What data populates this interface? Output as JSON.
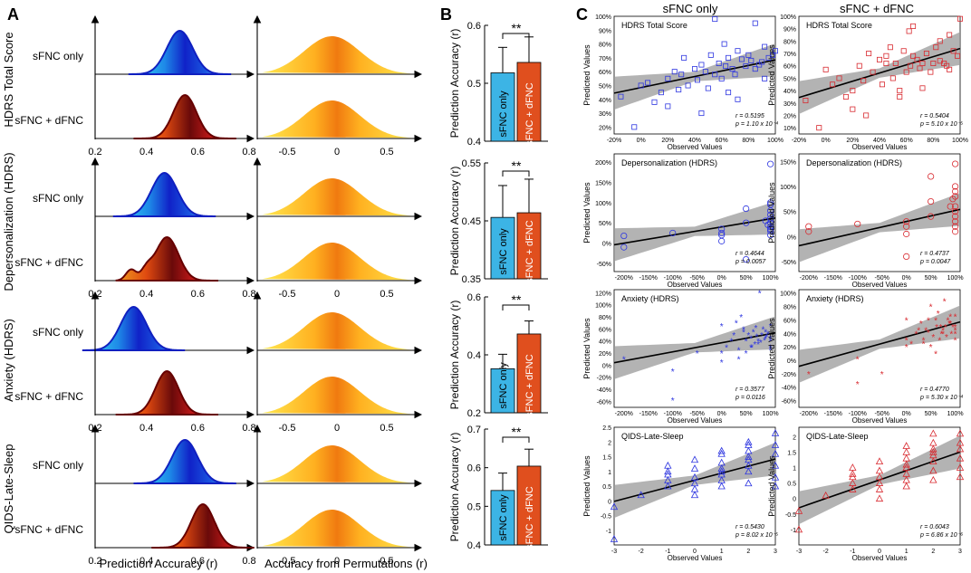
{
  "panels": {
    "A": "A",
    "B": "B",
    "C": "C"
  },
  "colors": {
    "blue": "#2d35e0",
    "red": "#d8292f",
    "sfnc_bar": "#3cb4e5",
    "dfnc_bar": "#e04f1e",
    "band": "#9a9a9a"
  },
  "panel_a": {
    "xlabel_left": "Prediction Accuracy (r)",
    "xlabel_right": "Accuracy from Permutations (r)",
    "left_ticks": [
      "0.2",
      "0.4",
      "0.6",
      "0.8"
    ],
    "right_ticks": [
      "-0.5",
      "0",
      "0.5"
    ],
    "row_labels": [
      "sFNC only",
      "sFNC + dFNC"
    ],
    "outcome_labels": [
      "HDRS Total Score",
      "Depersonalization (HDRS)",
      "Anxiety (HDRS)",
      "QIDS-Late-Sleep"
    ],
    "density_peaks": [
      {
        "sfnc": 0.53,
        "dfnc": 0.55
      },
      {
        "sfnc": 0.47,
        "dfnc": 0.48
      },
      {
        "sfnc": 0.35,
        "dfnc": 0.48
      },
      {
        "sfnc": 0.55,
        "dfnc": 0.62
      }
    ]
  },
  "chart_data": [
    {
      "type": "bar",
      "title": "HDRS Total Score",
      "categories": [
        "sFNC only",
        "sFNC + dFNC"
      ],
      "values": [
        0.518,
        0.536
      ],
      "errors": [
        0.044,
        0.044
      ],
      "ylabel": "Prediction Accuracy (r)",
      "ylim": [
        0.4,
        0.6
      ],
      "yticks": [
        "0.4",
        "0.5",
        "0.6"
      ],
      "annotation": "**"
    },
    {
      "type": "bar",
      "title": "Depersonalization (HDRS)",
      "categories": [
        "sFNC only",
        "sFNC + dFNC"
      ],
      "values": [
        0.456,
        0.464
      ],
      "errors": [
        0.055,
        0.058
      ],
      "ylabel": "Prediction Accuracy (r)",
      "ylim": [
        0.35,
        0.55
      ],
      "yticks": [
        "0.35",
        "0.45",
        "0.55"
      ],
      "annotation": "**"
    },
    {
      "type": "bar",
      "title": "Anxiety (HDRS)",
      "categories": [
        "sFNC only",
        "sFNC + dFNC"
      ],
      "values": [
        0.352,
        0.472
      ],
      "errors": [
        0.05,
        0.045
      ],
      "ylabel": "Prediction Accuracy (r)",
      "ylim": [
        0.2,
        0.6
      ],
      "yticks": [
        "0.2",
        "0.4",
        "0.6"
      ],
      "annotation": "**"
    },
    {
      "type": "bar",
      "title": "QIDS-Late-Sleep",
      "categories": [
        "sFNC only",
        "sFNC + dFNC"
      ],
      "values": [
        0.541,
        0.604
      ],
      "errors": [
        0.045,
        0.044
      ],
      "ylabel": "Prediction Accuracy (r)",
      "ylim": [
        0.4,
        0.7
      ],
      "yticks": [
        "0.4",
        "0.5",
        "0.6",
        "0.7"
      ],
      "annotation": "**"
    },
    {
      "type": "scatter",
      "title": "HDRS Total Score",
      "group": "sFNC only",
      "marker": "square",
      "xlabel": "Observed Values",
      "ylabel": "Predicted Values",
      "xlim": [
        -20,
        100
      ],
      "ylim": [
        15,
        100
      ],
      "xticks": [
        -20,
        0,
        20,
        40,
        60,
        80,
        100
      ],
      "yticks": [
        20,
        30,
        40,
        50,
        60,
        70,
        80,
        90,
        100
      ],
      "fmt": "pct",
      "fit": {
        "intercept": 48.5,
        "slope": 0.2
      },
      "stats": [
        "r = 0.5195",
        "p = 1.10 x 10⁻⁴"
      ],
      "x": [
        -15,
        -5,
        0,
        5,
        10,
        15,
        20,
        25,
        28,
        30,
        32,
        35,
        40,
        42,
        45,
        48,
        50,
        52,
        55,
        58,
        60,
        62,
        63,
        65,
        68,
        70,
        72,
        75,
        78,
        80,
        82,
        85,
        88,
        90,
        92,
        95,
        98,
        100,
        55,
        65,
        72,
        20,
        45,
        85,
        92
      ],
      "y": [
        42,
        20,
        50,
        52,
        38,
        45,
        55,
        60,
        47,
        58,
        70,
        50,
        62,
        54,
        65,
        60,
        48,
        72,
        58,
        66,
        55,
        80,
        64,
        70,
        62,
        58,
        75,
        69,
        64,
        72,
        68,
        95,
        65,
        67,
        78,
        70,
        72,
        75,
        98,
        45,
        40,
        35,
        30,
        62,
        55
      ]
    },
    {
      "type": "scatter",
      "title": "HDRS Total Score",
      "group": "sFNC + dFNC",
      "marker": "square",
      "xlabel": "Observed Values",
      "ylabel": "Predicted Values",
      "xlim": [
        -20,
        100
      ],
      "ylim": [
        5,
        100
      ],
      "xticks": [
        -20,
        0,
        20,
        40,
        60,
        80,
        100
      ],
      "yticks": [
        10,
        20,
        30,
        40,
        50,
        60,
        70,
        80,
        90,
        100
      ],
      "fmt": "pct",
      "fit": {
        "intercept": 41,
        "slope": 0.33
      },
      "stats": [
        "r = 0.5404",
        "p = 5.10 x 10⁻⁵"
      ],
      "x": [
        -15,
        -5,
        0,
        5,
        10,
        15,
        20,
        25,
        28,
        30,
        32,
        35,
        40,
        42,
        45,
        48,
        50,
        52,
        55,
        58,
        60,
        62,
        63,
        65,
        68,
        70,
        72,
        75,
        78,
        80,
        82,
        85,
        88,
        90,
        92,
        95,
        98,
        100,
        55,
        65,
        72,
        20,
        45,
        85,
        92
      ],
      "y": [
        32,
        10,
        57,
        45,
        50,
        35,
        40,
        60,
        48,
        20,
        70,
        55,
        65,
        45,
        68,
        75,
        50,
        62,
        40,
        72,
        55,
        88,
        60,
        68,
        65,
        58,
        62,
        70,
        55,
        62,
        75,
        80,
        62,
        60,
        85,
        72,
        68,
        98,
        35,
        92,
        42,
        25,
        62,
        64,
        57
      ]
    },
    {
      "type": "scatter",
      "title": "Depersonalization (HDRS)",
      "group": "sFNC only",
      "marker": "circle",
      "xlabel": "Observed Values",
      "ylabel": "Predicted Values",
      "xlim": [
        -220,
        110
      ],
      "ylim": [
        -70,
        220
      ],
      "xticks": [
        -200,
        -150,
        -100,
        -50,
        0,
        50,
        100
      ],
      "yticks": [
        -50,
        0,
        50,
        100,
        150,
        200
      ],
      "fmt": "pct",
      "fit": {
        "intercept": 40,
        "slope": 0.2
      },
      "stats": [
        "r = 0.4644",
        "p = 0.0057"
      ],
      "x": [
        -200,
        -200,
        -100,
        0,
        0,
        0,
        0,
        50,
        50,
        50,
        100,
        100,
        100,
        100,
        100,
        100,
        100,
        100,
        100,
        100,
        90,
        95,
        100
      ],
      "y": [
        -10,
        18,
        25,
        5,
        20,
        25,
        35,
        50,
        85,
        -40,
        195,
        30,
        20,
        50,
        60,
        70,
        80,
        95,
        100,
        40,
        55,
        45,
        35
      ]
    },
    {
      "type": "scatter",
      "title": "Depersonalization (HDRS)",
      "group": "sFNC + dFNC",
      "marker": "circle",
      "xlabel": "Observed Values",
      "ylabel": "Predicted Values",
      "xlim": [
        -220,
        110
      ],
      "ylim": [
        -70,
        165
      ],
      "xticks": [
        -200,
        -150,
        -100,
        -50,
        0,
        50,
        100
      ],
      "yticks": [
        -50,
        0,
        50,
        100,
        150
      ],
      "fmt": "pct",
      "fit": {
        "intercept": 30,
        "slope": 0.22
      },
      "stats": [
        "r = 0.4737",
        "p = 0.0047"
      ],
      "x": [
        -200,
        -200,
        -100,
        0,
        0,
        0,
        0,
        50,
        50,
        50,
        100,
        100,
        100,
        100,
        100,
        100,
        100,
        100,
        100,
        100,
        90,
        95
      ],
      "y": [
        10,
        20,
        25,
        -40,
        5,
        20,
        30,
        40,
        70,
        120,
        145,
        100,
        90,
        80,
        60,
        50,
        40,
        30,
        20,
        10,
        60,
        75
      ]
    },
    {
      "type": "scatter",
      "title": "Anxiety (HDRS)",
      "group": "sFNC only",
      "marker": "star",
      "xlabel": "Observed Values",
      "ylabel": "Predicted Values",
      "xlim": [
        -220,
        110
      ],
      "ylim": [
        -70,
        125
      ],
      "xticks": [
        -200,
        -150,
        -100,
        -50,
        0,
        50,
        100
      ],
      "yticks": [
        -60,
        -40,
        -20,
        0,
        20,
        40,
        60,
        80,
        100,
        120
      ],
      "fmt": "pct",
      "fit": {
        "intercept": 37,
        "slope": 0.15
      },
      "stats": [
        "r = 0.3577",
        "p = 0.0116"
      ],
      "x": [
        -200,
        -100,
        -100,
        -50,
        0,
        0,
        0,
        20,
        25,
        30,
        35,
        40,
        45,
        50,
        55,
        60,
        62,
        65,
        68,
        70,
        72,
        75,
        78,
        80,
        82,
        85,
        88,
        90,
        92,
        95,
        100,
        100,
        100,
        100,
        100,
        35,
        50,
        60,
        75,
        90,
        10,
        45
      ],
      "y": [
        10,
        -10,
        -58,
        20,
        20,
        5,
        65,
        40,
        50,
        70,
        25,
        80,
        60,
        40,
        50,
        45,
        30,
        55,
        35,
        62,
        48,
        40,
        120,
        38,
        50,
        60,
        42,
        55,
        48,
        52,
        65,
        45,
        30,
        25,
        40,
        10,
        20,
        30,
        35,
        45,
        30,
        55
      ]
    },
    {
      "type": "scatter",
      "title": "Anxiety (HDRS)",
      "group": "sFNC + dFNC",
      "marker": "star",
      "xlabel": "Observed Values",
      "ylabel": "Predicted Values",
      "xlim": [
        -220,
        110
      ],
      "ylim": [
        -70,
        105
      ],
      "xticks": [
        -200,
        -150,
        -100,
        -50,
        0,
        50,
        100
      ],
      "yticks": [
        -60,
        -40,
        -20,
        0,
        20,
        40,
        60,
        80,
        100
      ],
      "fmt": "pct",
      "fit": {
        "intercept": 35,
        "slope": 0.2
      },
      "stats": [
        "r = 0.4770",
        "p = 5.30 x 10⁻⁴"
      ],
      "x": [
        -200,
        -100,
        -100,
        -50,
        0,
        0,
        0,
        20,
        25,
        30,
        35,
        40,
        45,
        50,
        55,
        60,
        62,
        65,
        68,
        70,
        72,
        75,
        78,
        80,
        82,
        85,
        88,
        90,
        92,
        95,
        100,
        100,
        100,
        100,
        100,
        35,
        50,
        60,
        75,
        90,
        10,
        45
      ],
      "y": [
        -20,
        2,
        -35,
        -20,
        20,
        30,
        60,
        40,
        45,
        55,
        25,
        45,
        60,
        80,
        35,
        60,
        50,
        70,
        30,
        50,
        40,
        45,
        88,
        50,
        35,
        60,
        55,
        65,
        40,
        50,
        65,
        50,
        30,
        40,
        45,
        30,
        20,
        10,
        40,
        55,
        25,
        42
      ]
    },
    {
      "type": "scatter",
      "title": "QIDS-Late-Sleep",
      "group": "sFNC only",
      "marker": "triangle",
      "xlabel": "Observed Values",
      "ylabel": "Predicted Values",
      "xlim": [
        -3,
        3
      ],
      "ylim": [
        -1.5,
        2.5
      ],
      "xticks": [
        -3,
        -2,
        -1,
        0,
        1,
        2,
        3
      ],
      "yticks": [
        -1,
        -0.5,
        0,
        0.5,
        1,
        1.5,
        2,
        2.5
      ],
      "fmt": "num",
      "fit": {
        "intercept": 0.7,
        "slope": 0.24
      },
      "stats": [
        "r = 0.5430",
        "p = 8.02 x 10⁻⁵"
      ],
      "x": [
        -3,
        -3,
        -2,
        -1,
        -1,
        -1,
        -1,
        -1,
        0,
        0,
        0,
        0,
        0,
        0,
        1,
        1,
        1,
        1,
        1,
        1,
        1,
        2,
        2,
        2,
        2,
        2,
        2,
        2,
        3,
        3,
        3,
        3,
        3,
        3,
        1,
        2
      ],
      "y": [
        -1.3,
        -0.2,
        0.2,
        0.5,
        0.7,
        0.9,
        1.0,
        1.2,
        0.2,
        0.4,
        0.6,
        0.8,
        1.1,
        1.4,
        0.5,
        0.7,
        0.9,
        1.0,
        1.3,
        1.6,
        1.7,
        0.6,
        1.0,
        1.2,
        1.5,
        1.7,
        1.9,
        2.0,
        0.5,
        0.8,
        1.2,
        1.6,
        1.9,
        2.3,
        1.1,
        1.4
      ]
    },
    {
      "type": "scatter",
      "title": "QIDS-Late-Sleep",
      "group": "sFNC + dFNC",
      "marker": "triangle",
      "xlabel": "Observed Values",
      "ylabel": "Predicted Values",
      "xlim": [
        -3,
        3
      ],
      "ylim": [
        -1.5,
        2.3
      ],
      "xticks": [
        -3,
        -2,
        -1,
        0,
        1,
        2,
        3
      ],
      "yticks": [
        -1,
        -0.5,
        0,
        0.5,
        1,
        1.5,
        2
      ],
      "fmt": "num",
      "fit": {
        "intercept": 0.6,
        "slope": 0.3
      },
      "stats": [
        "r = 0.6043",
        "p = 6.86 x 10⁻⁶"
      ],
      "x": [
        -3,
        -3,
        -2,
        -1,
        -1,
        -1,
        -1,
        -1,
        0,
        0,
        0,
        0,
        0,
        0,
        1,
        1,
        1,
        1,
        1,
        1,
        1,
        2,
        2,
        2,
        2,
        2,
        2,
        2,
        3,
        3,
        3,
        3,
        3,
        3,
        1,
        2
      ],
      "y": [
        -1.0,
        -0.4,
        0.1,
        0.3,
        0.5,
        0.7,
        0.8,
        1.0,
        0.0,
        0.3,
        0.5,
        0.7,
        0.9,
        1.2,
        0.4,
        0.6,
        0.8,
        1.0,
        1.3,
        1.5,
        1.7,
        0.6,
        0.9,
        1.2,
        1.4,
        1.6,
        1.8,
        2.1,
        0.7,
        1.0,
        1.3,
        1.6,
        1.8,
        2.1,
        1.1,
        1.5
      ]
    }
  ],
  "panel_c": {
    "col_titles": [
      "sFNC only",
      "sFNC + dFNC"
    ]
  }
}
